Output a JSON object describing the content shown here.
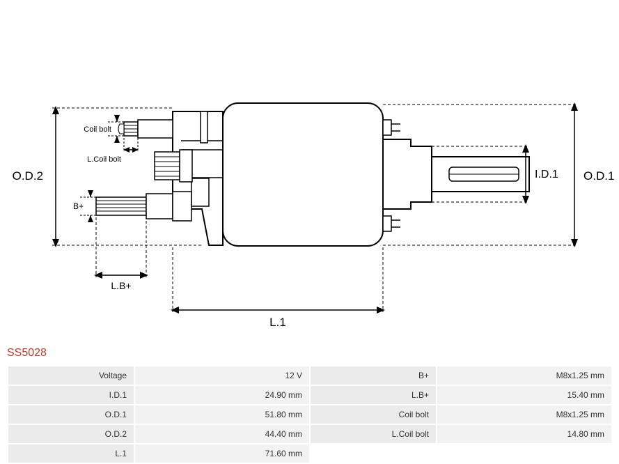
{
  "part_number": "SS5028",
  "diagram": {
    "labels": {
      "od2": "O.D.2",
      "od1": "O.D.1",
      "id1": "I.D.1",
      "l1": "L.1",
      "lbplus": "L.B+",
      "bplus": "B+",
      "coil_bolt": "Coil bolt",
      "l_coil_bolt": "L.Coil bolt"
    },
    "colors": {
      "stroke": "#000000",
      "dash": "#000000",
      "bg": "#ffffff"
    },
    "font_size_label": 15,
    "font_size_small": 11
  },
  "specs": {
    "rows": [
      {
        "label1": "Voltage",
        "value1": "12 V",
        "label2": "B+",
        "value2": "M8x1.25 mm"
      },
      {
        "label1": "I.D.1",
        "value1": "24.90 mm",
        "label2": "L.B+",
        "value2": "15.40 mm"
      },
      {
        "label1": "O.D.1",
        "value1": "51.80 mm",
        "label2": "Coil bolt",
        "value2": "M8x1.25 mm"
      },
      {
        "label1": "O.D.2",
        "value1": "44.40 mm",
        "label2": "L.Coil bolt",
        "value2": "14.80 mm"
      },
      {
        "label1": "L.1",
        "value1": "71.60 mm",
        "label2": "",
        "value2": ""
      }
    ],
    "colors": {
      "row_bg": "#f2f2f2",
      "label_bg": "#ebebeb",
      "text": "#333333"
    }
  }
}
